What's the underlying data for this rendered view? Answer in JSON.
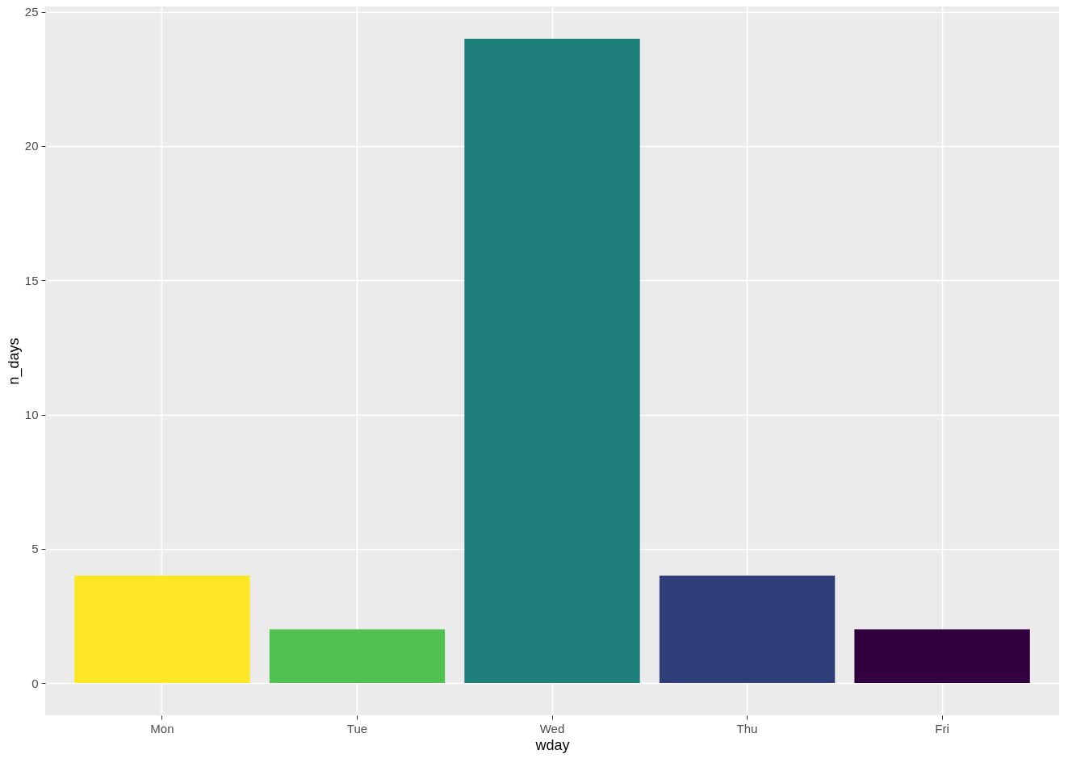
{
  "chart_data": {
    "type": "bar",
    "xlabel": "wday",
    "ylabel": "n_days",
    "categories": [
      "Mon",
      "Tue",
      "Wed",
      "Thu",
      "Fri"
    ],
    "values": [
      4,
      2,
      24,
      4,
      2
    ],
    "colors": [
      "#fde725",
      "#51c152",
      "#1f7f7a",
      "#2f3e78",
      "#33003f"
    ],
    "ylim": [
      -1.2,
      25.2
    ],
    "yticks": [
      0,
      5,
      10,
      15,
      20,
      25
    ],
    "grid": true,
    "legend": false
  }
}
